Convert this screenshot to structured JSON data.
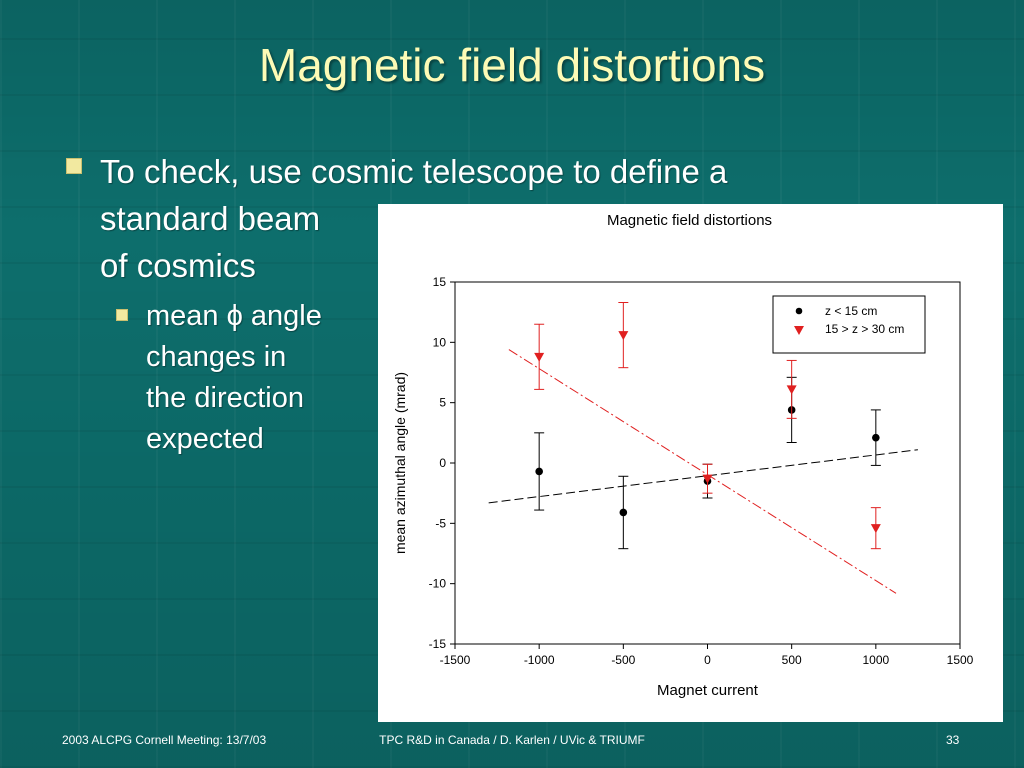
{
  "slide": {
    "title": "Magnetic field distortions",
    "bullet1_lines": [
      "To check, use cosmic telescope to define a",
      "standard beam",
      "of cosmics"
    ],
    "bullet2_lines": [
      "mean ϕ angle",
      "changes in",
      "the direction",
      "expected"
    ],
    "footer": {
      "left": "2003 ALCPG Cornell Meeting: 13/7/03",
      "center": "TPC R&D in Canada / D. Karlen / UVic & TRIUMF",
      "right": "33"
    },
    "colors": {
      "background": "#0d6e6c",
      "title": "#fdfbb6",
      "bullet_marker": "#f2e9a0"
    }
  },
  "chart_data": {
    "type": "scatter",
    "title": "Magnetic field distortions",
    "xlabel": "Magnet current",
    "ylabel": "mean azimuthal angle (mrad)",
    "xlim": [
      -1500,
      1500
    ],
    "ylim": [
      -15,
      15
    ],
    "xticks": [
      -1500,
      -1000,
      -500,
      0,
      500,
      1000,
      1500
    ],
    "yticks": [
      -15,
      -10,
      -5,
      0,
      5,
      10,
      15
    ],
    "legend_position": "top-right",
    "grid": false,
    "series": [
      {
        "name": "z < 15 cm",
        "marker": "circle",
        "color": "#000000",
        "points": [
          {
            "x": -1000,
            "y": -0.7,
            "err": 3.2
          },
          {
            "x": -500,
            "y": -4.1,
            "err": 3.0
          },
          {
            "x": 0,
            "y": -1.5,
            "err": 1.4
          },
          {
            "x": 500,
            "y": 4.4,
            "err": 2.7
          },
          {
            "x": 1000,
            "y": 2.1,
            "err": 2.3
          }
        ],
        "fit_line": {
          "x": [
            -1300,
            1250
          ],
          "y": [
            -3.3,
            1.1
          ],
          "style": "dashed"
        }
      },
      {
        "name": "15 > z > 30 cm",
        "marker": "triangle-down",
        "color": "#e02020",
        "points": [
          {
            "x": -1000,
            "y": 8.8,
            "err": 2.7
          },
          {
            "x": -500,
            "y": 10.6,
            "err": 2.7
          },
          {
            "x": 0,
            "y": -1.3,
            "err": 1.2
          },
          {
            "x": 500,
            "y": 6.1,
            "err": 2.4
          },
          {
            "x": 1000,
            "y": -5.4,
            "err": 1.7
          }
        ],
        "fit_line": {
          "x": [
            -1180,
            1120
          ],
          "y": [
            9.4,
            -10.8
          ],
          "style": "dash-dot"
        }
      }
    ]
  }
}
